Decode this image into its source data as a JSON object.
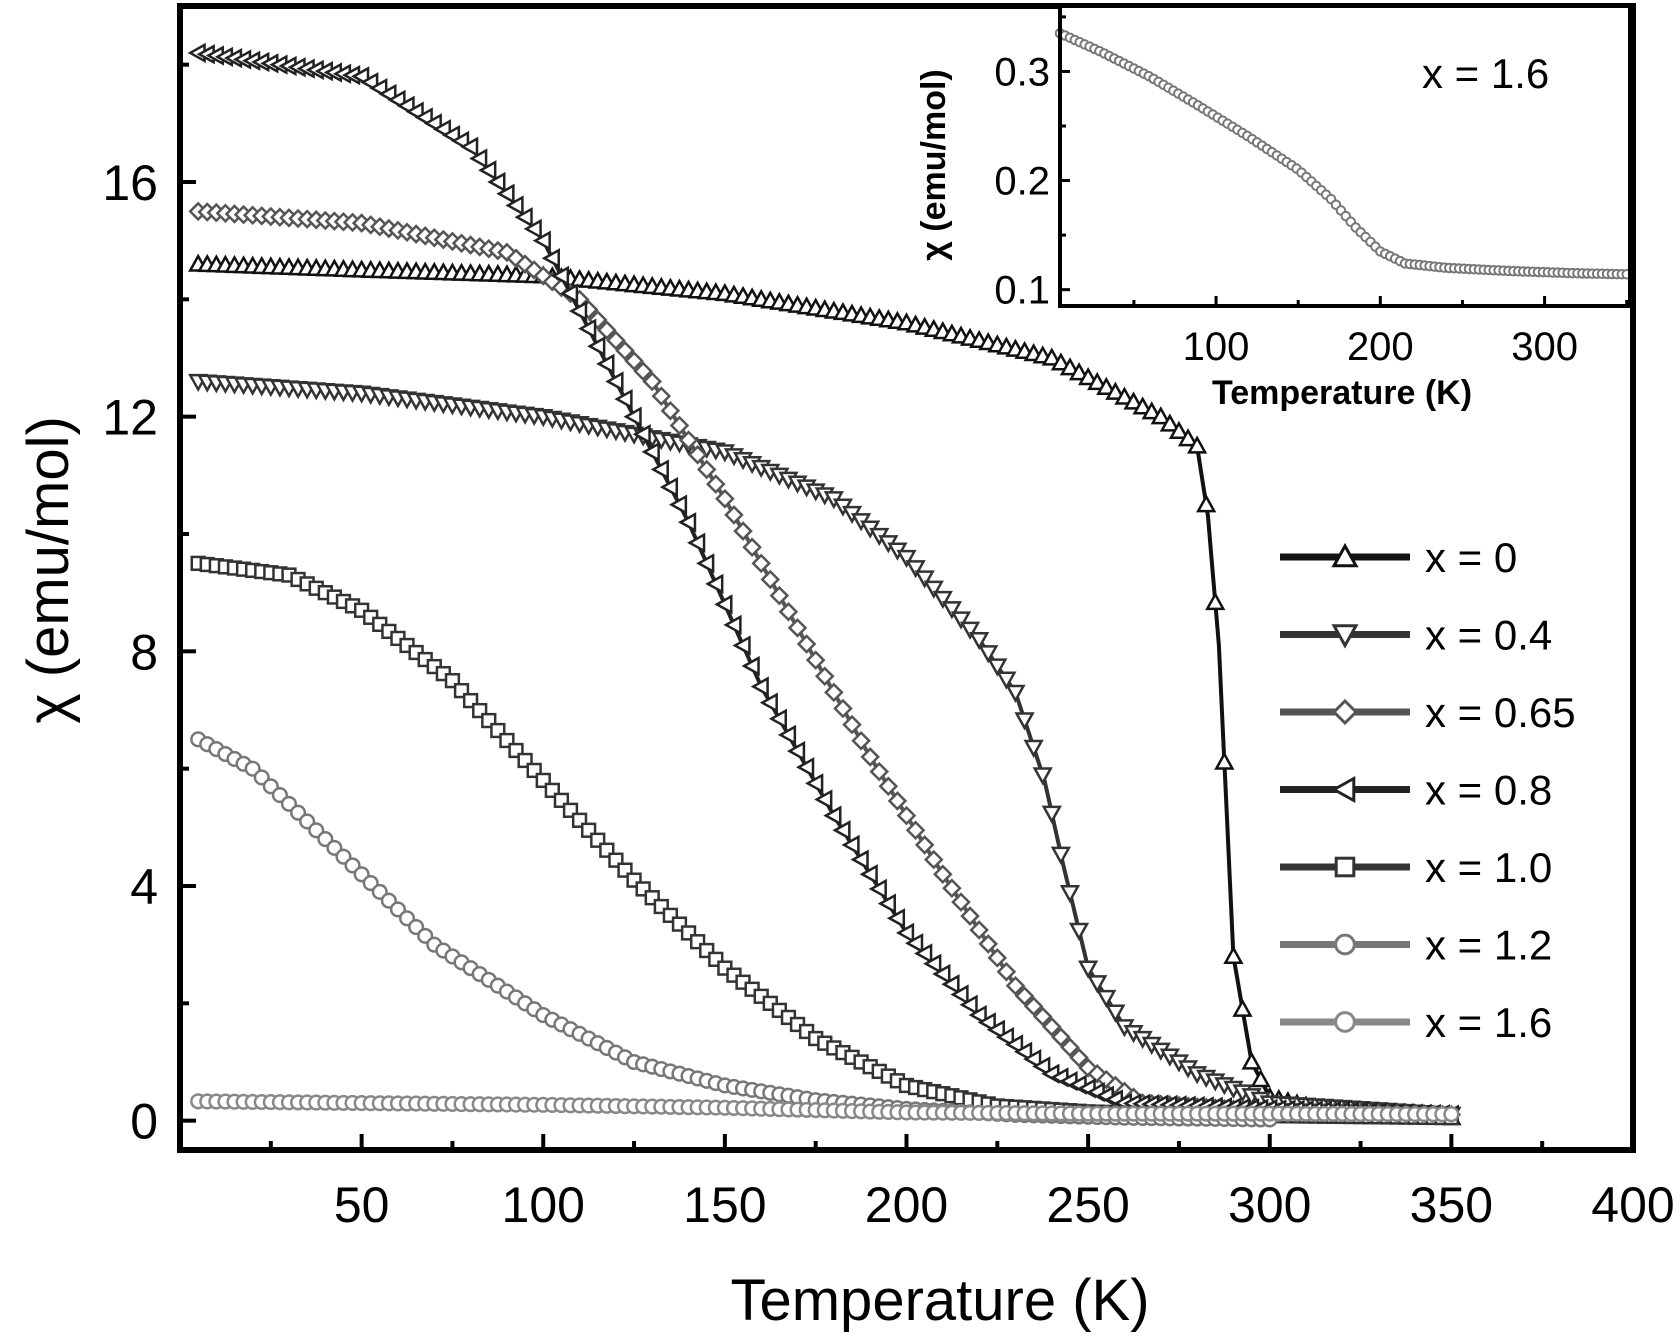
{
  "chart_data": [
    {
      "type": "scatter",
      "title": "",
      "xlabel": "Temperature (K)",
      "ylabel": "χ (emu/mol)",
      "xlim": [
        0,
        400
      ],
      "ylim": [
        -0.5,
        19
      ],
      "xticks": [
        "50",
        "100",
        "150",
        "200",
        "250",
        "300",
        "350",
        "400"
      ],
      "yticks": [
        "0",
        "4",
        "8",
        "12",
        "16"
      ],
      "legend_position": "right",
      "series": [
        {
          "name": "x = 0",
          "marker": "triangle-up",
          "color": "#111111",
          "x": [
            5,
            50,
            100,
            150,
            200,
            240,
            270,
            280,
            283,
            286,
            290,
            295,
            300,
            320,
            352
          ],
          "y": [
            14.6,
            14.5,
            14.4,
            14.1,
            13.6,
            13.0,
            12.0,
            11.5,
            10.3,
            8.1,
            2.8,
            1.0,
            0.4,
            0.1,
            0.05
          ]
        },
        {
          "name": "x = 0.4",
          "marker": "triangle-down",
          "color": "#333333",
          "x": [
            5,
            50,
            100,
            150,
            180,
            200,
            220,
            230,
            238,
            243,
            250,
            260,
            280,
            300,
            352
          ],
          "y": [
            12.6,
            12.4,
            12.0,
            11.4,
            10.6,
            9.6,
            8.2,
            7.3,
            5.8,
            4.4,
            2.6,
            1.6,
            0.8,
            0.3,
            0.1
          ]
        },
        {
          "name": "x = 0.65",
          "marker": "diamond",
          "color": "#555555",
          "x": [
            5,
            50,
            90,
            110,
            130,
            150,
            170,
            190,
            210,
            230,
            250,
            265,
            300,
            352
          ],
          "y": [
            15.5,
            15.3,
            14.8,
            14.0,
            12.6,
            10.6,
            8.4,
            6.2,
            4.2,
            2.3,
            0.9,
            0.3,
            0.15,
            0.1
          ]
        },
        {
          "name": "x = 0.8",
          "marker": "triangle-left",
          "color": "#222222",
          "x": [
            5,
            50,
            80,
            100,
            120,
            140,
            160,
            180,
            200,
            220,
            240,
            260,
            300,
            352
          ],
          "y": [
            18.2,
            17.8,
            16.6,
            15.0,
            12.6,
            10.2,
            7.4,
            5.2,
            3.2,
            1.8,
            0.8,
            0.3,
            0.2,
            0.1
          ]
        },
        {
          "name": "x = 1.0",
          "marker": "square",
          "color": "#333333",
          "x": [
            5,
            30,
            50,
            75,
            100,
            125,
            150,
            175,
            200,
            225,
            250,
            280,
            352
          ],
          "y": [
            9.5,
            9.3,
            8.7,
            7.5,
            5.8,
            4.1,
            2.6,
            1.4,
            0.6,
            0.25,
            0.15,
            0.1,
            0.05
          ]
        },
        {
          "name": "x = 1.2",
          "marker": "circle",
          "color": "#777777",
          "x": [
            5,
            20,
            45,
            70,
            100,
            125,
            150,
            175,
            200,
            230,
            260,
            300
          ],
          "y": [
            6.5,
            6.0,
            4.5,
            3.0,
            1.8,
            1.0,
            0.6,
            0.35,
            0.2,
            0.1,
            0.05,
            0.02
          ]
        },
        {
          "name": "x = 1.6",
          "marker": "circle",
          "color": "#888888",
          "x": [
            5,
            50,
            100,
            150,
            200,
            250,
            300,
            350
          ],
          "y": [
            0.33,
            0.3,
            0.27,
            0.22,
            0.14,
            0.12,
            0.12,
            0.11
          ]
        }
      ]
    },
    {
      "type": "scatter",
      "title": "",
      "annotation": "x = 1.6",
      "xlabel": "Temperature (K)",
      "ylabel": "χ (emu/mol)",
      "xlim": [
        5,
        352
      ],
      "ylim": [
        0.085,
        0.36
      ],
      "xticks": [
        "100",
        "200",
        "300"
      ],
      "yticks": [
        "0.1",
        "0.2",
        "0.3"
      ],
      "series": [
        {
          "name": "x = 1.6",
          "marker": "circle",
          "color": "#777777",
          "x": [
            5,
            30,
            60,
            90,
            120,
            150,
            170,
            185,
            200,
            215,
            240,
            280,
            320,
            352
          ],
          "y": [
            0.335,
            0.318,
            0.295,
            0.268,
            0.24,
            0.21,
            0.183,
            0.157,
            0.135,
            0.124,
            0.12,
            0.117,
            0.115,
            0.114
          ]
        }
      ]
    }
  ]
}
